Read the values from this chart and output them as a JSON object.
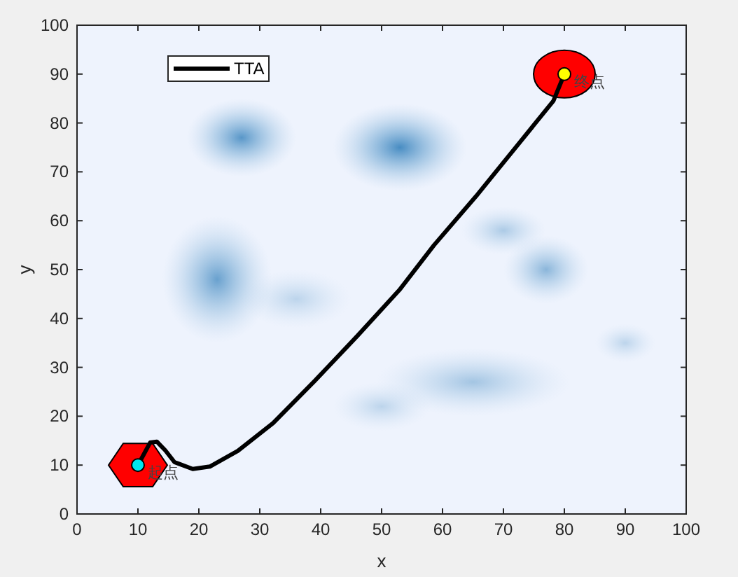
{
  "chart_data": {
    "type": "line",
    "xlabel": "x",
    "ylabel": "y",
    "xlim": [
      0,
      100
    ],
    "ylim": [
      0,
      100
    ],
    "xticks": [
      0,
      10,
      20,
      30,
      40,
      50,
      60,
      70,
      80,
      90,
      100
    ],
    "yticks": [
      0,
      10,
      20,
      30,
      40,
      50,
      60,
      70,
      80,
      90,
      100
    ],
    "legend": "top left",
    "annotations": [
      {
        "text": "起点",
        "x": 10,
        "y": 10
      },
      {
        "text": "终点",
        "x": 80,
        "y": 90
      }
    ],
    "series": [
      {
        "name": "TTA",
        "color": "#000000",
        "x": [
          10,
          12,
          13.1,
          14.5,
          16,
          19,
          21.8,
          26.4,
          32.2,
          39,
          46,
          52.9,
          58.6,
          65.5,
          72.4,
          78.2,
          80
        ],
        "values": [
          10,
          14.6,
          14.8,
          13,
          10.6,
          9.2,
          9.7,
          12.9,
          18.6,
          27.2,
          36.4,
          45.8,
          55,
          65,
          75.6,
          84.5,
          90
        ]
      },
      {
        "type": "scatter",
        "marker": "circle",
        "color": "#00e5ee",
        "x": [
          10
        ],
        "values": [
          10
        ]
      },
      {
        "type": "scatter",
        "marker": "circle",
        "color": "#ffff00",
        "x": [
          80
        ],
        "values": [
          90
        ]
      }
    ]
  }
}
